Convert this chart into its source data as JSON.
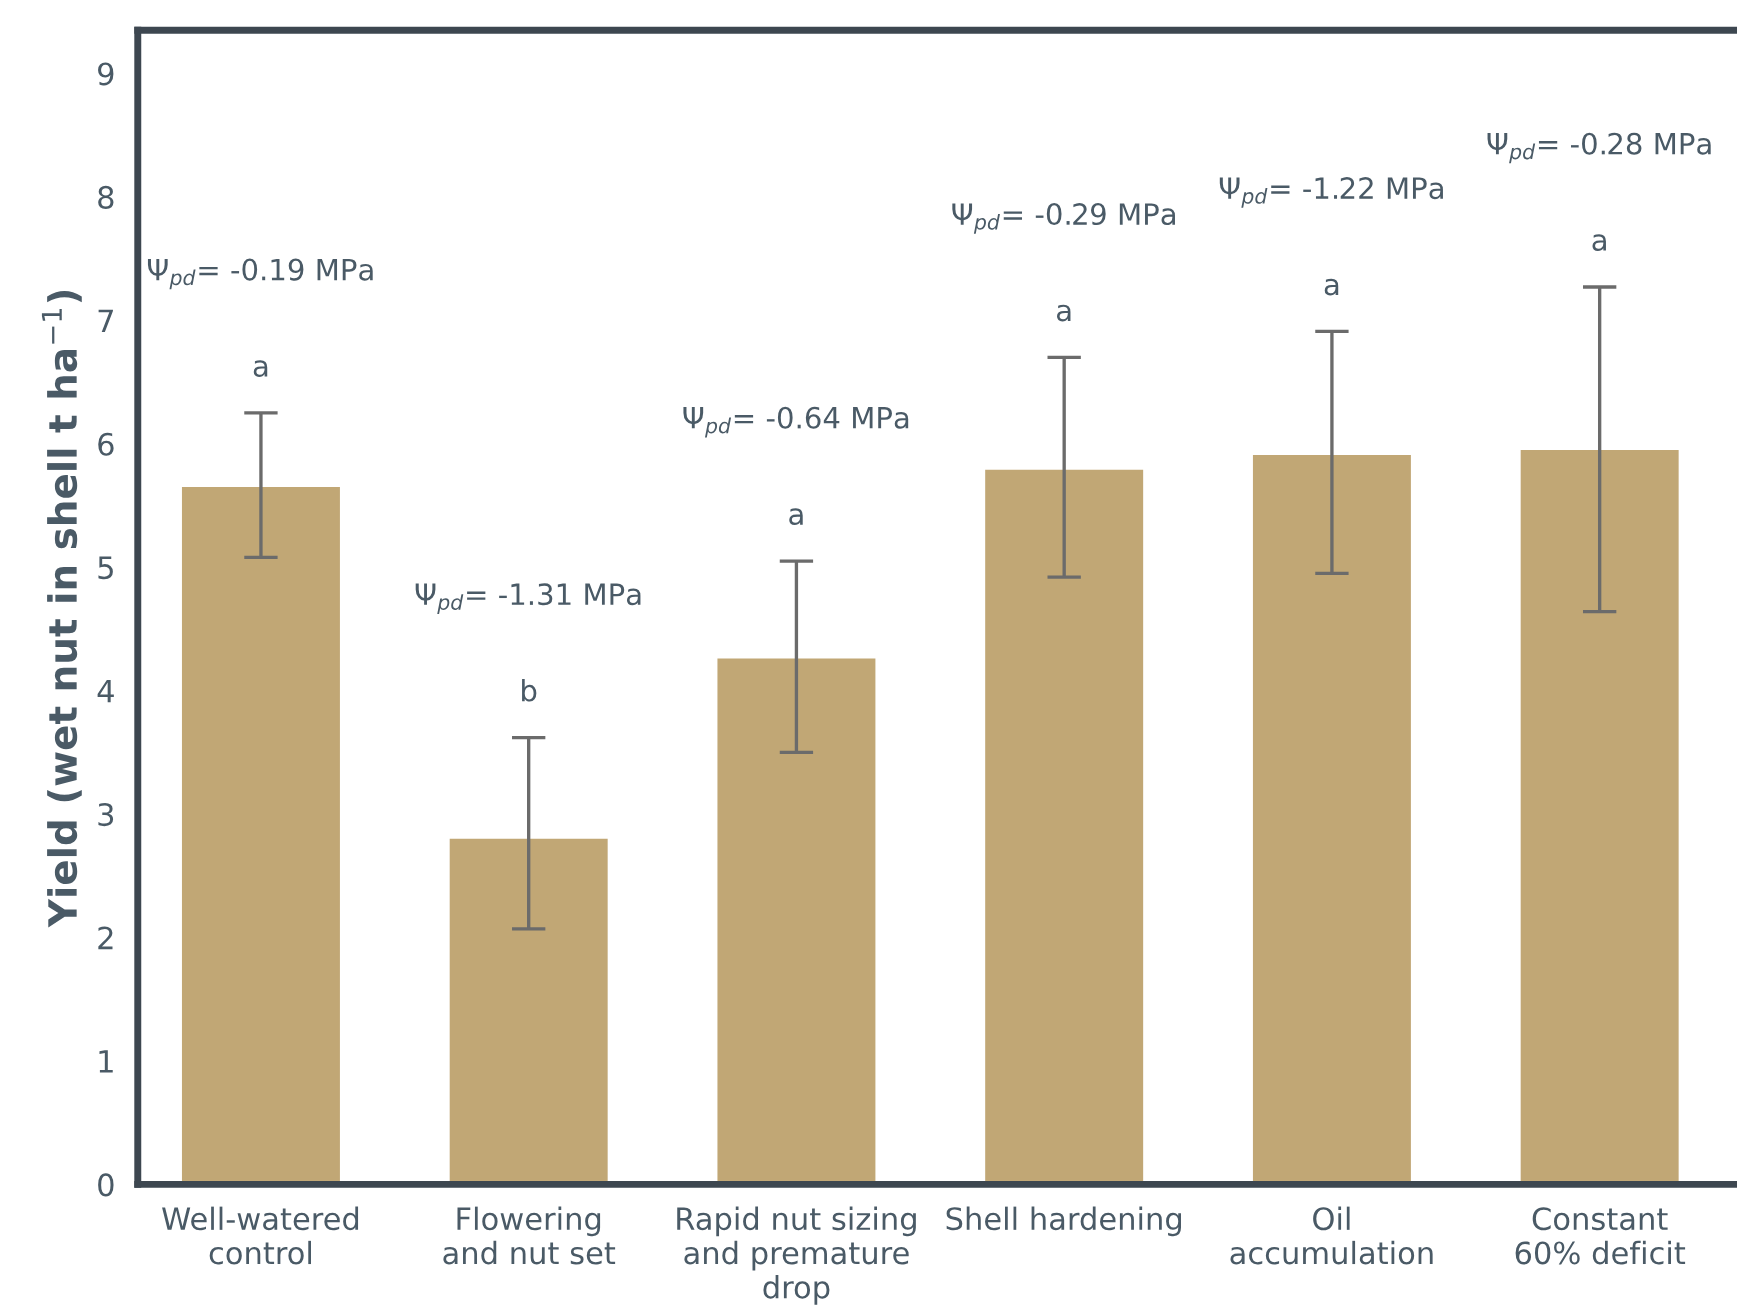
{
  "chart_data": {
    "type": "bar",
    "ylabel": "Yield (wet nut in shell t ha$^{−1}$)",
    "categories": [
      "Well-watered\ncontrol",
      "Flowering\nand nut set",
      "Rapid nut sizing\nand premature\ndrop",
      "Shell hardening",
      "Oil\naccumulation",
      "Constant\n60% deficit"
    ],
    "values": [
      5.65,
      2.8,
      4.26,
      5.79,
      5.91,
      5.95
    ],
    "errors": [
      [
        5.08,
        6.25
      ],
      [
        2.07,
        3.62
      ],
      [
        3.5,
        5.05
      ],
      [
        4.92,
        6.7
      ],
      [
        4.95,
        6.91
      ],
      [
        4.64,
        7.27
      ]
    ],
    "color": "#c1a775",
    "ylim": [
      0,
      9.35
    ],
    "yticks": [
      0,
      1,
      2,
      3,
      4,
      5,
      6,
      7,
      8,
      9
    ],
    "grid": false,
    "annotations": [
      "a",
      "Ψ$_{pd}$= -0.19 MPa",
      "b",
      "Ψ$_{pd}$= -1.31 MPa",
      "a",
      "Ψ$_{pd}$= -0.64 MPa",
      "a",
      "Ψ$_{pd}$= -0.29 MPa",
      "a",
      "Ψ$_{pd}$= -1.22 MPa",
      "a",
      "Ψ$_{pd}$= -0.28 MPa"
    ]
  }
}
